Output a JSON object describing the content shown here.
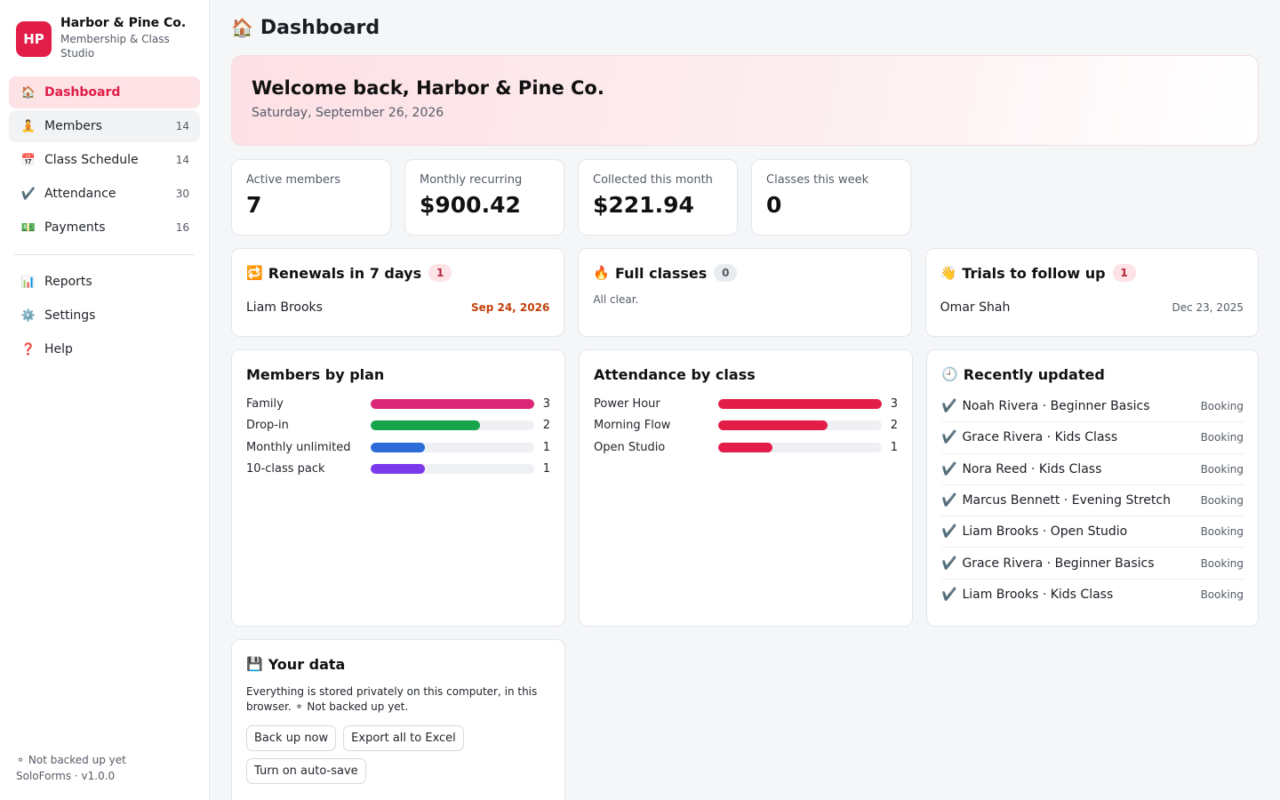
{
  "brand": {
    "initials": "HP",
    "name": "Harbor & Pine Co.",
    "subtitle": "Membership & Class Studio"
  },
  "nav": [
    {
      "icon": "🏠",
      "label": "Dashboard",
      "count": "",
      "active": true
    },
    {
      "icon": "🧘",
      "label": "Members",
      "count": "14"
    },
    {
      "icon": "📅",
      "label": "Class Schedule",
      "count": "14"
    },
    {
      "icon": "✔️",
      "label": "Attendance",
      "count": "30"
    },
    {
      "icon": "💵",
      "label": "Payments",
      "count": "16"
    }
  ],
  "nav2": [
    {
      "icon": "📊",
      "label": "Reports"
    },
    {
      "icon": "⚙️",
      "label": "Settings"
    },
    {
      "icon": "❓",
      "label": "Help"
    }
  ],
  "sidebar_footer": {
    "backup_status": "⚬ Not backed up yet",
    "version": "SoloForms · v1.0.0"
  },
  "page": {
    "icon": "🏠",
    "title": "Dashboard"
  },
  "welcome": {
    "title": "Welcome back, Harbor & Pine Co.",
    "date": "Saturday, September 26, 2026"
  },
  "stats": [
    {
      "label": "Active members",
      "value": "7"
    },
    {
      "label": "Monthly recurring",
      "value": "$900.42"
    },
    {
      "label": "Collected this month",
      "value": "$221.94"
    },
    {
      "label": "Classes this week",
      "value": "0"
    }
  ],
  "renewals": {
    "icon": "🔁",
    "title": "Renewals in 7 days",
    "badge": "1",
    "name": "Liam Brooks",
    "date": "Sep 24, 2026"
  },
  "full_classes": {
    "icon": "🔥",
    "title": "Full classes",
    "badge": "0",
    "empty": "All clear."
  },
  "trials": {
    "icon": "👋",
    "title": "Trials to follow up",
    "badge": "1",
    "name": "Omar Shah",
    "date": "Dec 23, 2025"
  },
  "colors": {
    "accent": "#e11d48",
    "family": "#db2777",
    "dropin": "#16a34a",
    "monthly": "#2b6cd8",
    "pack": "#7c3aed",
    "attendance": "#e11d48"
  },
  "members_by_plan": {
    "title": "Members by plan",
    "max": 3,
    "rows": [
      {
        "label": "Family",
        "value": 3,
        "color": "#db2777"
      },
      {
        "label": "Drop-in",
        "value": 2,
        "color": "#16a34a"
      },
      {
        "label": "Monthly unlimited",
        "value": 1,
        "color": "#2b6cd8"
      },
      {
        "label": "10-class pack",
        "value": 1,
        "color": "#7c3aed"
      }
    ]
  },
  "attendance_by_class": {
    "title": "Attendance by class",
    "max": 3,
    "rows": [
      {
        "label": "Power Hour",
        "value": 3,
        "color": "#e11d48"
      },
      {
        "label": "Morning Flow",
        "value": 2,
        "color": "#e11d48"
      },
      {
        "label": "Open Studio",
        "value": 1,
        "color": "#e11d48"
      }
    ]
  },
  "recent": {
    "icon": "🕘",
    "title": "Recently updated",
    "items": [
      {
        "text": "Noah Rivera · Beginner Basics",
        "type": "Booking"
      },
      {
        "text": "Grace Rivera · Kids Class",
        "type": "Booking"
      },
      {
        "text": "Nora Reed · Kids Class",
        "type": "Booking"
      },
      {
        "text": "Marcus Bennett · Evening Stretch",
        "type": "Booking"
      },
      {
        "text": "Liam Brooks · Open Studio",
        "type": "Booking"
      },
      {
        "text": "Grace Rivera · Beginner Basics",
        "type": "Booking"
      },
      {
        "text": "Liam Brooks · Kids Class",
        "type": "Booking"
      }
    ]
  },
  "your_data": {
    "icon": "💾",
    "title": "Your data",
    "text": "Everything is stored privately on this computer, in this browser. ⚬ Not backed up yet.",
    "buttons": [
      "Back up now",
      "Export all to Excel",
      "Turn on auto-save"
    ]
  }
}
